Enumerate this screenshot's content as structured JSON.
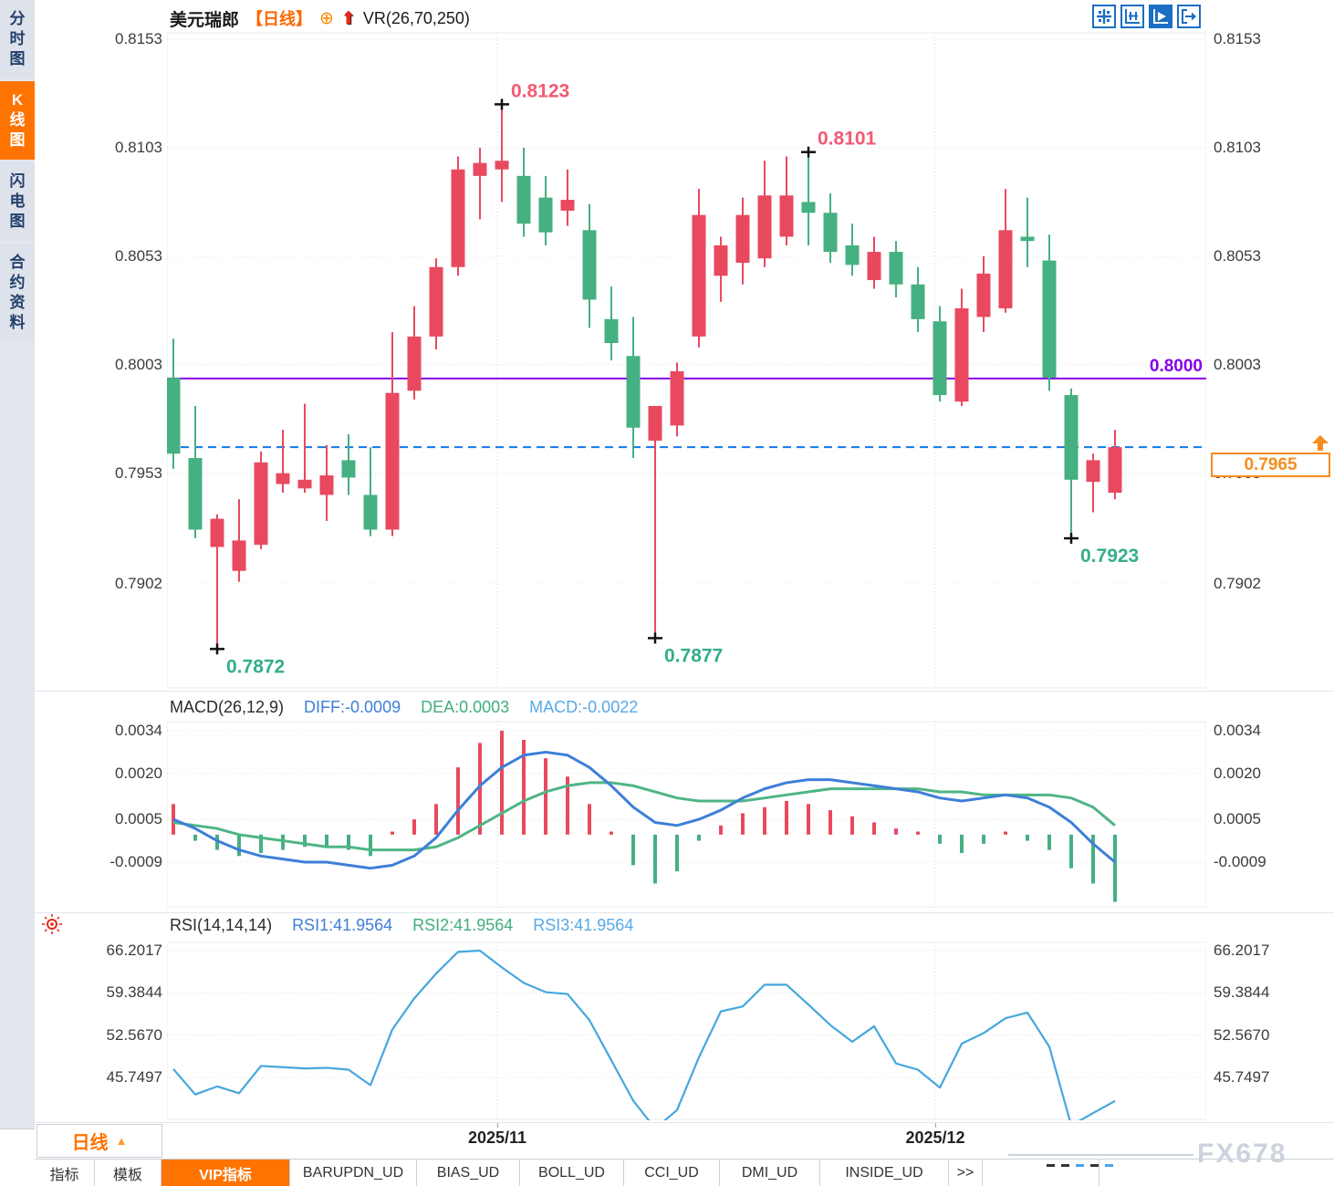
{
  "header": {
    "symbol": "美元瑞郎",
    "period": "【日线】",
    "add_icon_glyph": "⊕",
    "up_arrow_glyph": "⬆",
    "indicator": "VR(26,70,250)"
  },
  "sidebar": {
    "items": [
      {
        "label": "分时图",
        "active": false
      },
      {
        "label": "K线图",
        "active": true
      },
      {
        "label": "闪电图",
        "active": false
      },
      {
        "label": "合约资料",
        "active": false
      }
    ]
  },
  "toolbar": {
    "icons": [
      {
        "name": "pan-crosshair-icon",
        "active": false
      },
      {
        "name": "axis-range-icon",
        "active": false
      },
      {
        "name": "auto-scroll-icon",
        "active": true
      },
      {
        "name": "shift-right-icon",
        "active": false
      }
    ]
  },
  "main_chart": {
    "y_axis_labels": [
      "0.8153",
      "0.8103",
      "0.8053",
      "0.8003",
      "0.7953",
      "0.7902"
    ],
    "horizontal_line": {
      "value": 0.8,
      "label": "0.8000"
    },
    "current_price": {
      "value": 0.7965,
      "label": "0.7965"
    }
  },
  "macd_panel": {
    "title": "MACD(26,12,9)",
    "diff_label": "DIFF:-0.0009",
    "dea_label": "DEA:0.0003",
    "macd_label": "MACD:-0.0022",
    "y_axis_labels": [
      "0.0034",
      "0.0020",
      "0.0005",
      "-0.0009"
    ]
  },
  "rsi_panel": {
    "title": "RSI(14,14,14)",
    "rsi1_label": "RSI1:41.9564",
    "rsi2_label": "RSI2:41.9564",
    "rsi3_label": "RSI3:41.9564",
    "y_axis_labels": [
      "66.2017",
      "59.3844",
      "52.5670",
      "45.7497"
    ]
  },
  "x_axis": {
    "ticks": [
      {
        "label": "2025/11",
        "x": 545
      },
      {
        "label": "2025/12",
        "x": 1025
      }
    ]
  },
  "period_button": {
    "label": "日线",
    "arrow": "▲"
  },
  "bottom_tabs": {
    "items": [
      "指标",
      "模板",
      "VIP指标",
      "BARUPDN_UD",
      "BIAS_UD",
      "BOLL_UD",
      "CCI_UD",
      "DMI_UD",
      "INSIDE_UD",
      ">>"
    ],
    "active_index": 2
  },
  "watermark": "FX678",
  "colors": {
    "up": "#e8495f",
    "down": "#45b081",
    "ann_high": "#f25a73",
    "ann_low": "#33ae8b",
    "hline_purple": "#8500e8",
    "dashed_blue": "#1478e6",
    "orange": "#f78c1e",
    "diff_blue": "#3d7fd8",
    "dea_green": "#4fb585",
    "rsi_line": "#45a7dd",
    "grid": "#e0e0e0",
    "icon_blue": "#1b6ec2"
  },
  "chart_data": [
    {
      "type": "candlestick",
      "title": "美元瑞郎 日线 (USD/CHF daily)",
      "ylim": [
        0.786,
        0.816
      ],
      "y_ticks": [
        0.8153,
        0.8103,
        0.8053,
        0.8003,
        0.7953,
        0.7902
      ],
      "x_ticks": [
        "2025/11",
        "2025/12"
      ],
      "annotations": [
        {
          "candle": 2,
          "price": 0.7872,
          "text": "0.7872",
          "kind": "low"
        },
        {
          "candle": 15,
          "price": 0.8123,
          "text": "0.8123",
          "kind": "high"
        },
        {
          "candle": 22,
          "price": 0.7877,
          "text": "0.7877",
          "kind": "low"
        },
        {
          "candle": 29,
          "price": 0.8101,
          "text": "0.8101",
          "kind": "high"
        },
        {
          "candle": 41,
          "price": 0.7923,
          "text": "0.7923",
          "kind": "low"
        }
      ],
      "hline": 0.8,
      "current_price": 0.7965,
      "ohlc": [
        [
          0.7997,
          0.8015,
          0.7955,
          0.7962
        ],
        [
          0.796,
          0.7984,
          0.7923,
          0.7927
        ],
        [
          0.7919,
          0.7934,
          0.7872,
          0.7932
        ],
        [
          0.7908,
          0.7941,
          0.7903,
          0.7922
        ],
        [
          0.792,
          0.7963,
          0.7918,
          0.7958
        ],
        [
          0.7948,
          0.7973,
          0.7944,
          0.7953
        ],
        [
          0.7946,
          0.7985,
          0.7944,
          0.795
        ],
        [
          0.7943,
          0.7966,
          0.7931,
          0.7952
        ],
        [
          0.7959,
          0.7971,
          0.7943,
          0.7951
        ],
        [
          0.7943,
          0.7965,
          0.7924,
          0.7927
        ],
        [
          0.7927,
          0.8018,
          0.7924,
          0.799
        ],
        [
          0.7991,
          0.803,
          0.7987,
          0.8016
        ],
        [
          0.8016,
          0.8052,
          0.801,
          0.8048
        ],
        [
          0.8048,
          0.8099,
          0.8044,
          0.8093
        ],
        [
          0.809,
          0.8103,
          0.807,
          0.8096
        ],
        [
          0.8093,
          0.8123,
          0.8078,
          0.8097
        ],
        [
          0.809,
          0.8103,
          0.8062,
          0.8068
        ],
        [
          0.808,
          0.809,
          0.8058,
          0.8064
        ],
        [
          0.8074,
          0.8093,
          0.8067,
          0.8079
        ],
        [
          0.8065,
          0.8077,
          0.802,
          0.8033
        ],
        [
          0.8024,
          0.8039,
          0.8005,
          0.8013
        ],
        [
          0.8007,
          0.8025,
          0.796,
          0.7974
        ],
        [
          0.7968,
          0.7984,
          0.7877,
          0.7984
        ],
        [
          0.7975,
          0.8004,
          0.797,
          0.8
        ],
        [
          0.8016,
          0.8084,
          0.8011,
          0.8072
        ],
        [
          0.8044,
          0.8062,
          0.8032,
          0.8058
        ],
        [
          0.805,
          0.808,
          0.804,
          0.8072
        ],
        [
          0.8052,
          0.8097,
          0.8048,
          0.8081
        ],
        [
          0.8062,
          0.8099,
          0.8058,
          0.8081
        ],
        [
          0.8078,
          0.8101,
          0.8058,
          0.8073
        ],
        [
          0.8073,
          0.8082,
          0.805,
          0.8055
        ],
        [
          0.8058,
          0.8068,
          0.8044,
          0.8049
        ],
        [
          0.8042,
          0.8062,
          0.8038,
          0.8055
        ],
        [
          0.8055,
          0.806,
          0.8034,
          0.804
        ],
        [
          0.804,
          0.8048,
          0.8018,
          0.8024
        ],
        [
          0.8023,
          0.803,
          0.7986,
          0.7989
        ],
        [
          0.7986,
          0.8038,
          0.7984,
          0.8029
        ],
        [
          0.8025,
          0.8053,
          0.8018,
          0.8045
        ],
        [
          0.8029,
          0.8084,
          0.8027,
          0.8065
        ],
        [
          0.8062,
          0.808,
          0.8048,
          0.806
        ],
        [
          0.8051,
          0.8063,
          0.7991,
          0.7997
        ],
        [
          0.7989,
          0.7992,
          0.7923,
          0.795
        ],
        [
          0.7949,
          0.7962,
          0.7935,
          0.7959
        ],
        [
          0.7944,
          0.7973,
          0.7941,
          0.7965
        ]
      ]
    },
    {
      "type": "bar",
      "title": "MACD(26,12,9)",
      "ylim": [
        -0.0025,
        0.0038
      ],
      "y_ticks": [
        0.0034,
        0.002,
        0.0005,
        -0.0009
      ],
      "series": [
        {
          "name": "HIST",
          "values": [
            0.001,
            -0.0002,
            -0.0005,
            -0.0007,
            -0.0006,
            -0.0005,
            -0.0004,
            -0.0004,
            -0.0005,
            -0.0007,
            0.0001,
            0.0005,
            0.001,
            0.0022,
            0.003,
            0.0034,
            0.0031,
            0.0025,
            0.0019,
            0.001,
            0.0001,
            -0.001,
            -0.0016,
            -0.0012,
            -0.0002,
            0.0003,
            0.0007,
            0.0009,
            0.0011,
            0.001,
            0.0008,
            0.0006,
            0.0004,
            0.0002,
            0.0001,
            -0.0003,
            -0.0006,
            -0.0003,
            0.0001,
            -0.0002,
            -0.0005,
            -0.0011,
            -0.0016,
            -0.0022
          ]
        },
        {
          "name": "DIFF",
          "values": [
            0.0005,
            0.0002,
            -0.0002,
            -0.0005,
            -0.0007,
            -0.0008,
            -0.0009,
            -0.0009,
            -0.001,
            -0.0011,
            -0.001,
            -0.0007,
            -0.0001,
            0.0008,
            0.0016,
            0.0022,
            0.0026,
            0.0027,
            0.0026,
            0.0022,
            0.0016,
            0.0009,
            0.0004,
            0.0003,
            0.0005,
            0.0008,
            0.0012,
            0.0015,
            0.0017,
            0.0018,
            0.0018,
            0.0017,
            0.0016,
            0.0015,
            0.0014,
            0.0012,
            0.0011,
            0.0012,
            0.0013,
            0.0012,
            0.0009,
            0.0004,
            -0.0003,
            -0.0009
          ]
        },
        {
          "name": "DEA",
          "values": [
            0.0004,
            0.0003,
            0.0002,
            0.0,
            -0.0001,
            -0.0002,
            -0.0003,
            -0.0004,
            -0.0004,
            -0.0005,
            -0.0005,
            -0.0005,
            -0.0004,
            -0.0001,
            0.0003,
            0.0007,
            0.0011,
            0.0014,
            0.0016,
            0.0017,
            0.0017,
            0.0016,
            0.0014,
            0.0012,
            0.0011,
            0.0011,
            0.0011,
            0.0012,
            0.0013,
            0.0014,
            0.0015,
            0.0015,
            0.0015,
            0.0015,
            0.0015,
            0.0014,
            0.0014,
            0.0013,
            0.0013,
            0.0013,
            0.0013,
            0.0012,
            0.0009,
            0.0003
          ]
        }
      ]
    },
    {
      "type": "line",
      "title": "RSI(14,14,14)",
      "ylim": [
        36,
        68
      ],
      "y_ticks": [
        66.2017,
        59.3844,
        52.567,
        45.7497
      ],
      "series": [
        {
          "name": "RSI1",
          "values": [
            47.1,
            43.0,
            44.3,
            43.2,
            47.6,
            47.4,
            47.2,
            47.3,
            47.0,
            44.5,
            53.5,
            58.5,
            62.5,
            66.0,
            66.2,
            63.5,
            61.0,
            59.5,
            59.2,
            55.0,
            48.5,
            42.0,
            37.5,
            40.5,
            49.0,
            56.4,
            57.2,
            60.7,
            60.7,
            57.5,
            54.2,
            51.5,
            54.0,
            48.0,
            47.0,
            44.1,
            51.2,
            52.9,
            55.3,
            56.2,
            50.7,
            38.0,
            40.0,
            41.9564
          ]
        }
      ]
    }
  ]
}
